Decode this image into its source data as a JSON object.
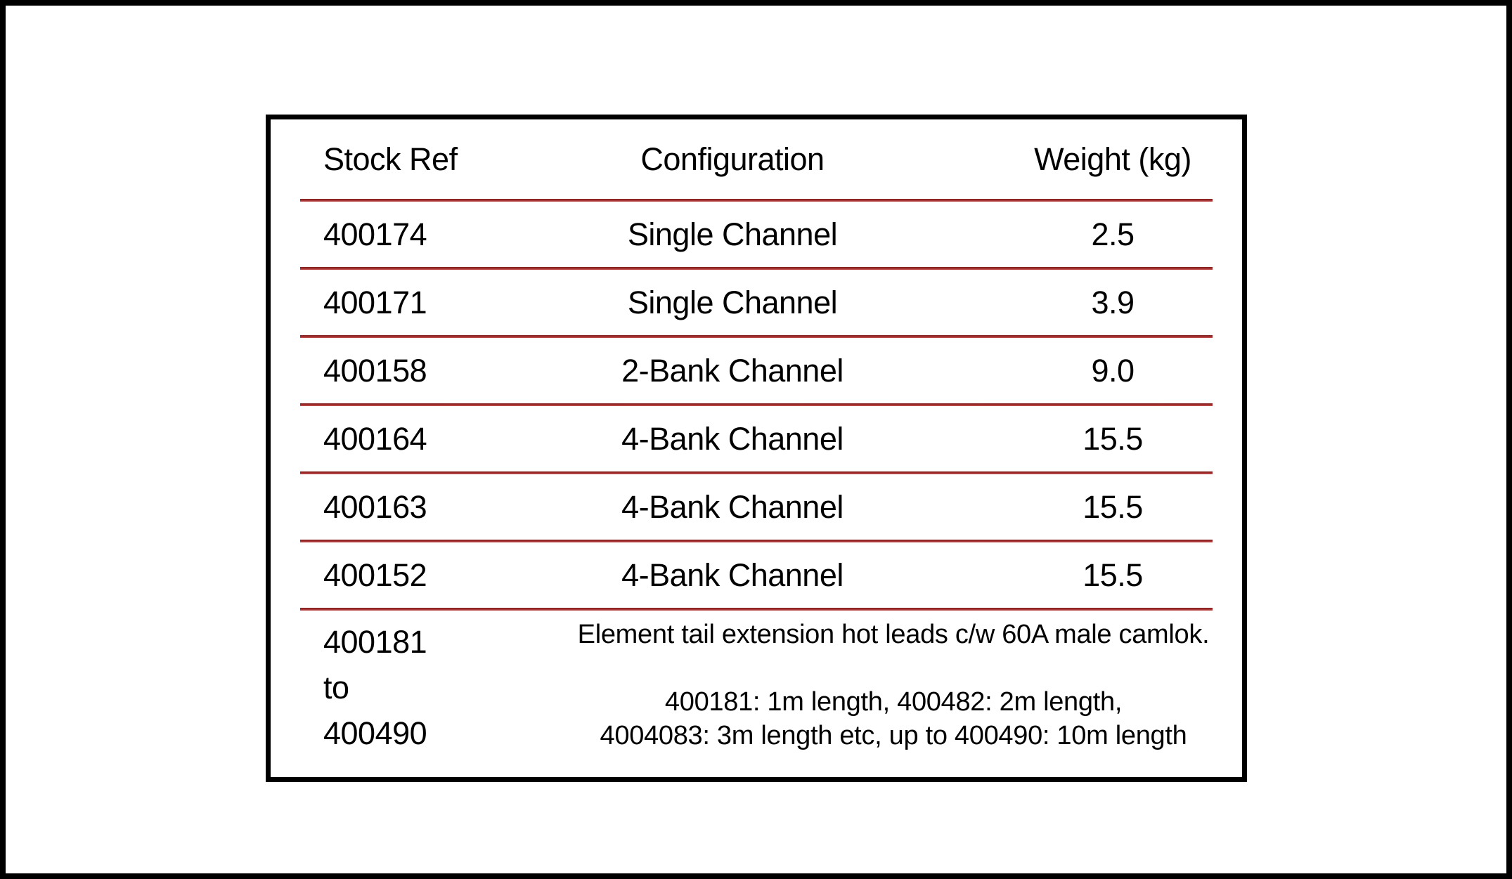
{
  "colors": {
    "divider": "#a02c2c",
    "border": "#000000",
    "background": "#ffffff",
    "text": "#000000"
  },
  "table": {
    "headers": [
      "Stock Ref",
      "Configuration",
      "Weight (kg)"
    ],
    "rows": [
      {
        "stock_ref": "400174",
        "configuration": "Single Channel",
        "weight": "2.5"
      },
      {
        "stock_ref": "400171",
        "configuration": "Single Channel",
        "weight": "3.9"
      },
      {
        "stock_ref": "400158",
        "configuration": "2-Bank Channel",
        "weight": "9.0"
      },
      {
        "stock_ref": "400164",
        "configuration": "4-Bank Channel",
        "weight": "15.5"
      },
      {
        "stock_ref": "400163",
        "configuration": "4-Bank Channel",
        "weight": "15.5"
      },
      {
        "stock_ref": "400152",
        "configuration": "4-Bank Channel",
        "weight": "15.5"
      }
    ],
    "footer_row": {
      "stock_ref_lines": [
        "400181",
        "to",
        "400490"
      ],
      "description_line1": "Element tail extension hot leads c/w 60A male camlok.",
      "description_line2": "400181: 1m length, 400482: 2m length,",
      "description_line3": "4004083: 3m length etc, up to 400490: 10m length"
    }
  }
}
